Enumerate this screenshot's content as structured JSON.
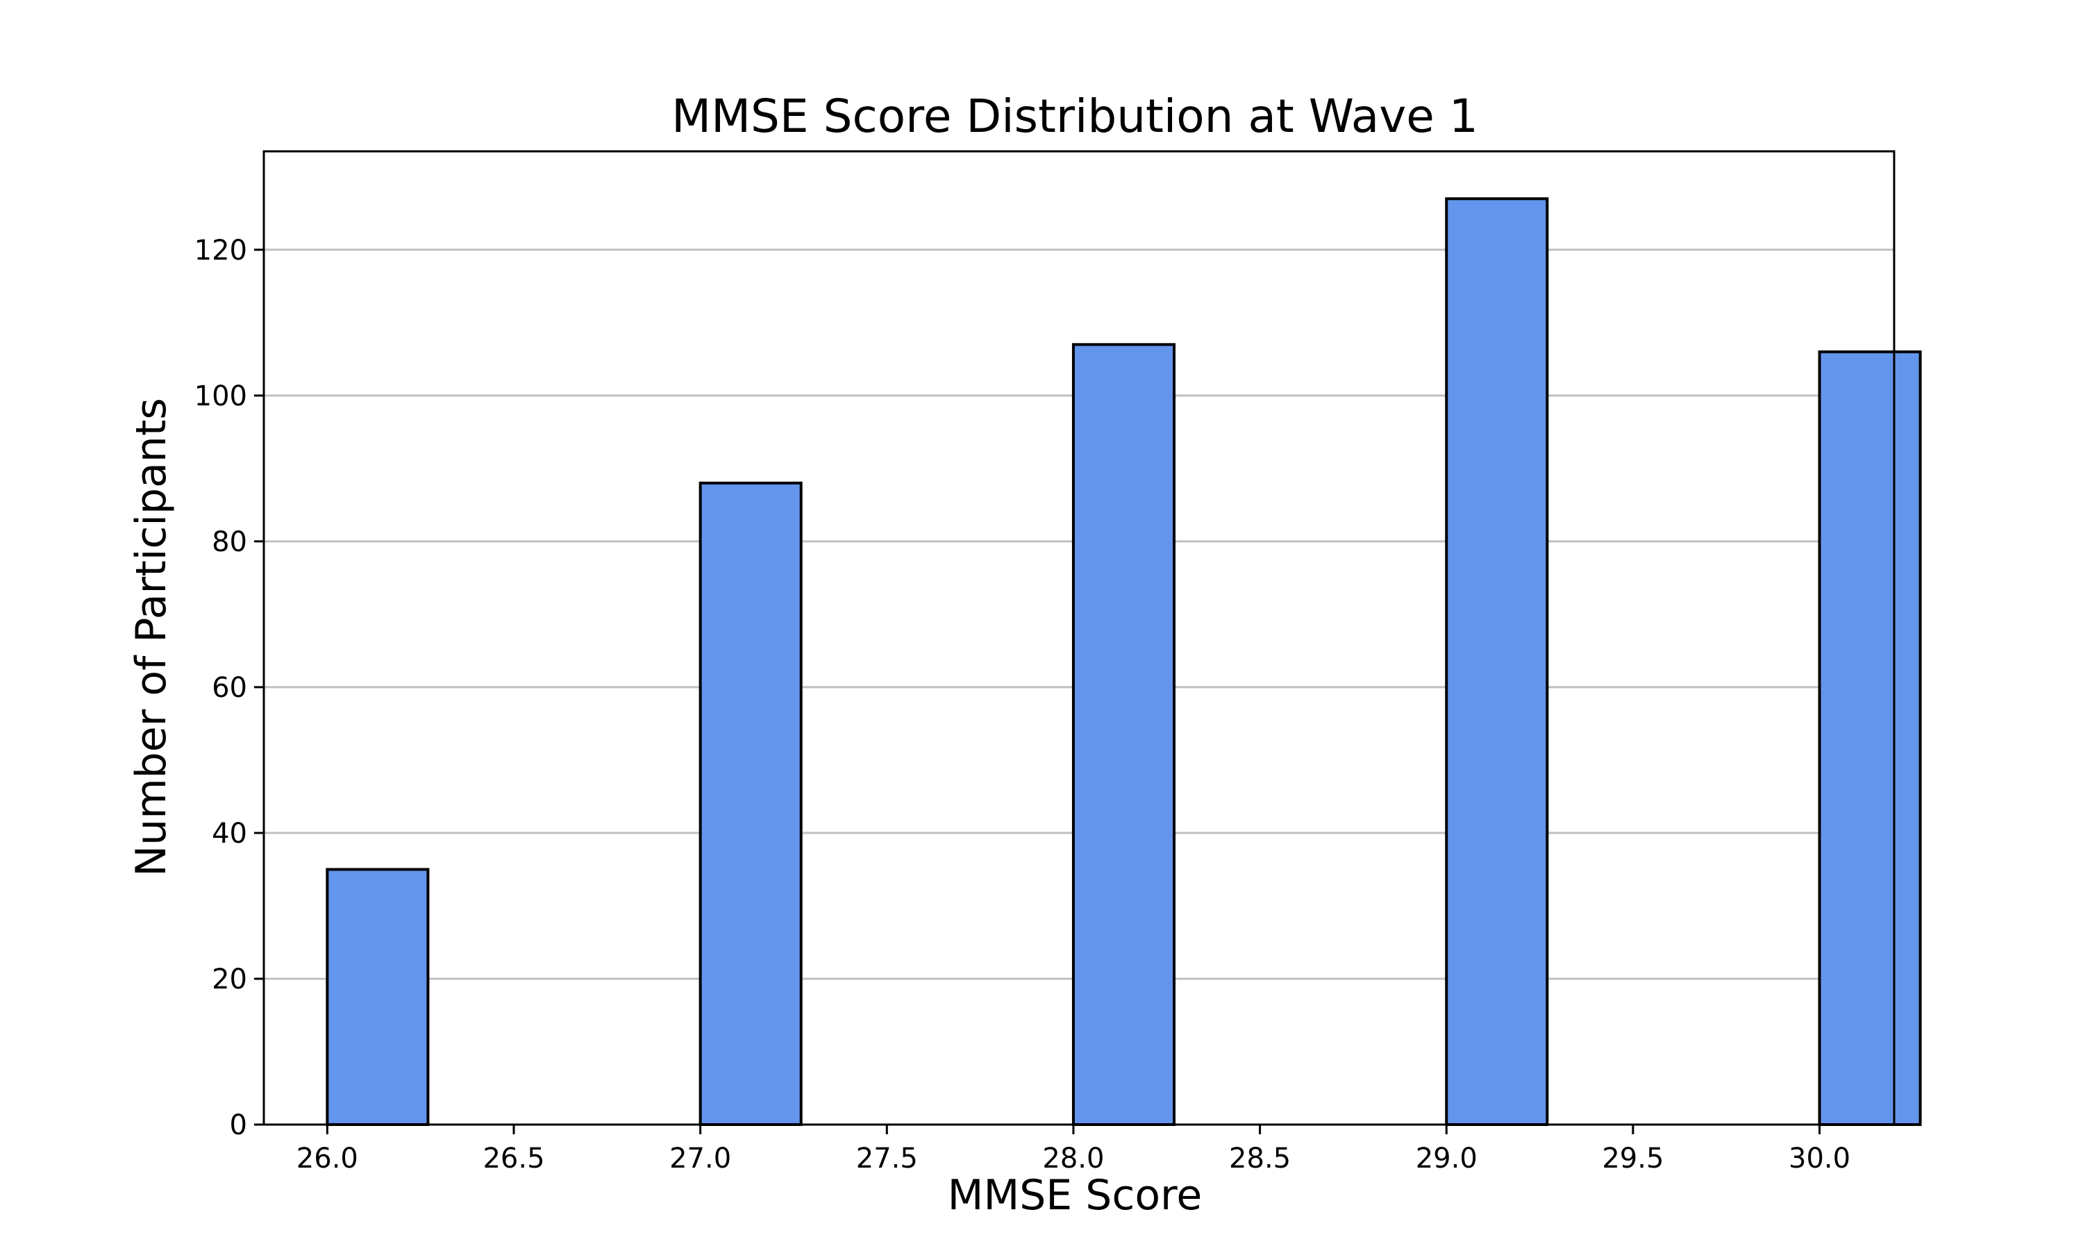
{
  "chart_data": {
    "type": "bar",
    "title": "MMSE Score Distribution at Wave 1",
    "xlabel": "MMSE Score",
    "ylabel": "Number of Participants",
    "x": [
      26,
      27,
      28,
      29,
      30
    ],
    "values": [
      35,
      88,
      107,
      127,
      106
    ],
    "bin_width": 0.27,
    "xlim": [
      25.83,
      30.2
    ],
    "ylim": [
      0,
      133.5
    ],
    "xticks": [
      26.0,
      26.5,
      27.0,
      27.5,
      28.0,
      28.5,
      29.0,
      29.5,
      30.0
    ],
    "xtick_labels": [
      "26.0",
      "26.5",
      "27.0",
      "27.5",
      "28.0",
      "28.5",
      "29.0",
      "29.5",
      "30.0"
    ],
    "yticks": [
      0,
      20,
      40,
      60,
      80,
      100,
      120
    ],
    "ytick_labels": [
      "0",
      "20",
      "40",
      "60",
      "80",
      "100",
      "120"
    ],
    "grid": "horizontal",
    "legend": "none",
    "colors": {
      "bar_fill": "#6495ED",
      "bar_edge": "#000000",
      "grid": "#bfbfbf",
      "axis": "#000000"
    }
  }
}
